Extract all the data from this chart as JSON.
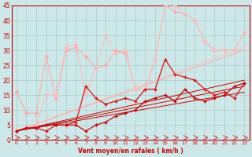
{
  "xlabel": "Vent moyen/en rafales ( km/h )",
  "xlim": [
    -0.5,
    23.5
  ],
  "ylim": [
    0,
    45
  ],
  "yticks": [
    0,
    5,
    10,
    15,
    20,
    25,
    30,
    35,
    40,
    45
  ],
  "xticks": [
    0,
    1,
    2,
    3,
    4,
    5,
    6,
    7,
    8,
    9,
    10,
    11,
    12,
    13,
    14,
    15,
    16,
    17,
    18,
    19,
    20,
    21,
    22,
    23
  ],
  "bg_color": "#cce8e8",
  "grid_color": "#aacccc",
  "series": [
    {
      "x": [
        0,
        1,
        2,
        3,
        4,
        5,
        6,
        7,
        8,
        9,
        10,
        11,
        12,
        13,
        14,
        15,
        16,
        17,
        18,
        19,
        20,
        21,
        22,
        23
      ],
      "y": [
        3,
        4,
        4,
        3,
        5,
        5,
        6,
        18,
        14,
        12,
        13,
        14,
        13,
        17,
        17,
        27,
        22,
        21,
        20,
        17,
        15,
        16,
        14,
        19
      ],
      "color": "#dd1111",
      "lw": 0.9,
      "marker": "+",
      "ms": 3.0,
      "zorder": 5
    },
    {
      "x": [
        0,
        1,
        2,
        3,
        4,
        5,
        6,
        7,
        8,
        9,
        10,
        11,
        12,
        13,
        14,
        15,
        16,
        17,
        18,
        19,
        20,
        21,
        22,
        23
      ],
      "y": [
        3,
        4,
        4,
        5,
        5,
        5,
        5,
        3,
        5,
        6,
        8,
        9,
        10,
        13,
        14,
        15,
        13,
        17,
        14,
        13,
        14,
        15,
        18,
        19
      ],
      "color": "#cc0000",
      "lw": 0.9,
      "marker": "+",
      "ms": 3.0,
      "zorder": 5
    },
    {
      "x": [
        0,
        1,
        2,
        3,
        4,
        5,
        6,
        7,
        8,
        9,
        10,
        11,
        12,
        13,
        14,
        15,
        16,
        17,
        18,
        19,
        20,
        21,
        22,
        23
      ],
      "y": [
        16,
        9,
        9,
        28,
        14,
        30,
        31,
        28,
        24,
        25,
        30,
        29,
        17,
        17,
        27,
        45,
        43,
        42,
        40,
        33,
        30,
        30,
        30,
        36
      ],
      "color": "#ffaaaa",
      "lw": 0.8,
      "marker": "D",
      "ms": 2.0,
      "zorder": 3
    },
    {
      "x": [
        0,
        1,
        2,
        3,
        4,
        5,
        6,
        7,
        8,
        9,
        10,
        11,
        12,
        13,
        14,
        15,
        16,
        17,
        18,
        19,
        20,
        21,
        22,
        23
      ],
      "y": [
        3,
        4,
        5,
        15,
        15,
        31,
        32,
        15,
        24,
        35,
        29,
        30,
        17,
        17,
        27,
        45,
        45,
        42,
        40,
        33,
        30,
        30,
        30,
        36
      ],
      "color": "#ffbbbb",
      "lw": 0.8,
      "marker": "D",
      "ms": 2.0,
      "zorder": 3
    }
  ],
  "trend_lines": [
    {
      "x": [
        0,
        23
      ],
      "y": [
        3,
        31
      ],
      "color": "#ffbbbb",
      "lw": 0.7
    },
    {
      "x": [
        0,
        23
      ],
      "y": [
        3,
        30
      ],
      "color": "#ffaaaa",
      "lw": 0.7
    },
    {
      "x": [
        0,
        23
      ],
      "y": [
        3,
        20
      ],
      "color": "#cc0000",
      "lw": 0.7
    },
    {
      "x": [
        0,
        23
      ],
      "y": [
        3,
        18
      ],
      "color": "#cc0000",
      "lw": 0.7
    },
    {
      "x": [
        0,
        23
      ],
      "y": [
        3,
        16
      ],
      "color": "#cc0000",
      "lw": 0.7
    }
  ]
}
